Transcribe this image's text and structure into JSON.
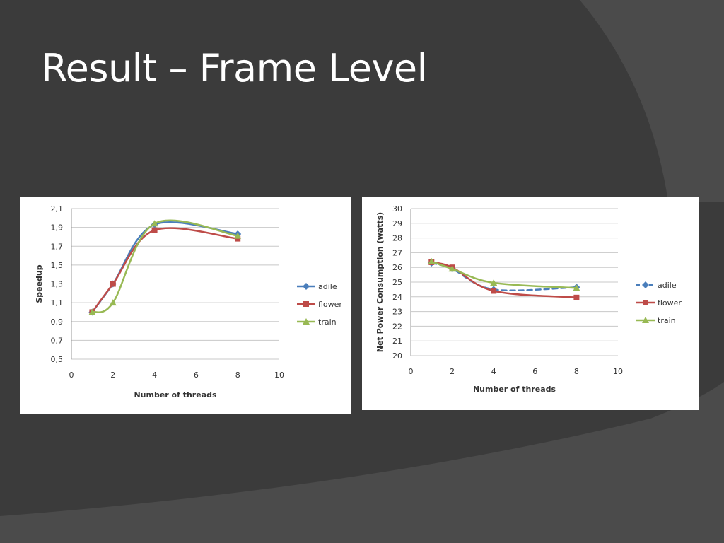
{
  "slide": {
    "title": "Result – Frame Level"
  },
  "colors": {
    "background": "#3b3b3b",
    "background_band": "#4b4b4b",
    "title_text": "#ffffff",
    "panel": "#ffffff",
    "gridline": "#c8c8c8",
    "axis_text": "#333333"
  },
  "chart_data": [
    {
      "id": "speedup",
      "type": "line",
      "title": "",
      "xlabel": "Number of threads",
      "ylabel": "Speedup",
      "xlim": [
        0,
        10
      ],
      "ylim": [
        0.5,
        2.1
      ],
      "x_ticks": [
        "0",
        "2",
        "4",
        "6",
        "8",
        "10"
      ],
      "y_ticks": [
        "0,5",
        "0,7",
        "0,9",
        "1,1",
        "1,3",
        "1,5",
        "1,7",
        "1,9",
        "2,1"
      ],
      "grid": "horizontal",
      "legend_position": "right",
      "x": [
        1,
        2,
        4,
        8
      ],
      "series": [
        {
          "name": "adile",
          "color": "#4a7ebb",
          "marker": "diamond",
          "dashed": false,
          "values": [
            1.0,
            1.3,
            1.93,
            1.83
          ]
        },
        {
          "name": "flower",
          "color": "#be4b48",
          "marker": "square",
          "dashed": false,
          "values": [
            1.0,
            1.3,
            1.87,
            1.78
          ]
        },
        {
          "name": "train",
          "color": "#98b954",
          "marker": "triangle",
          "dashed": false,
          "values": [
            1.0,
            1.1,
            1.94,
            1.81
          ]
        }
      ]
    },
    {
      "id": "power",
      "type": "line",
      "title": "",
      "xlabel": "Number of threads",
      "ylabel": "Net Power Consumption (watts)",
      "xlim": [
        0,
        10
      ],
      "ylim": [
        20,
        30
      ],
      "x_ticks": [
        "0",
        "2",
        "4",
        "6",
        "8",
        "10"
      ],
      "y_ticks": [
        "20",
        "21",
        "22",
        "23",
        "24",
        "25",
        "26",
        "27",
        "28",
        "29",
        "30"
      ],
      "grid": "horizontal",
      "legend_position": "right",
      "x": [
        1,
        2,
        4,
        8
      ],
      "series": [
        {
          "name": "adile",
          "color": "#4a7ebb",
          "marker": "diamond",
          "dashed": true,
          "values": [
            26.3,
            25.9,
            24.5,
            24.65
          ]
        },
        {
          "name": "flower",
          "color": "#be4b48",
          "marker": "square",
          "dashed": false,
          "values": [
            26.35,
            26.0,
            24.4,
            23.95
          ]
        },
        {
          "name": "train",
          "color": "#98b954",
          "marker": "triangle",
          "dashed": false,
          "values": [
            26.4,
            25.9,
            24.95,
            24.6
          ]
        }
      ]
    }
  ]
}
